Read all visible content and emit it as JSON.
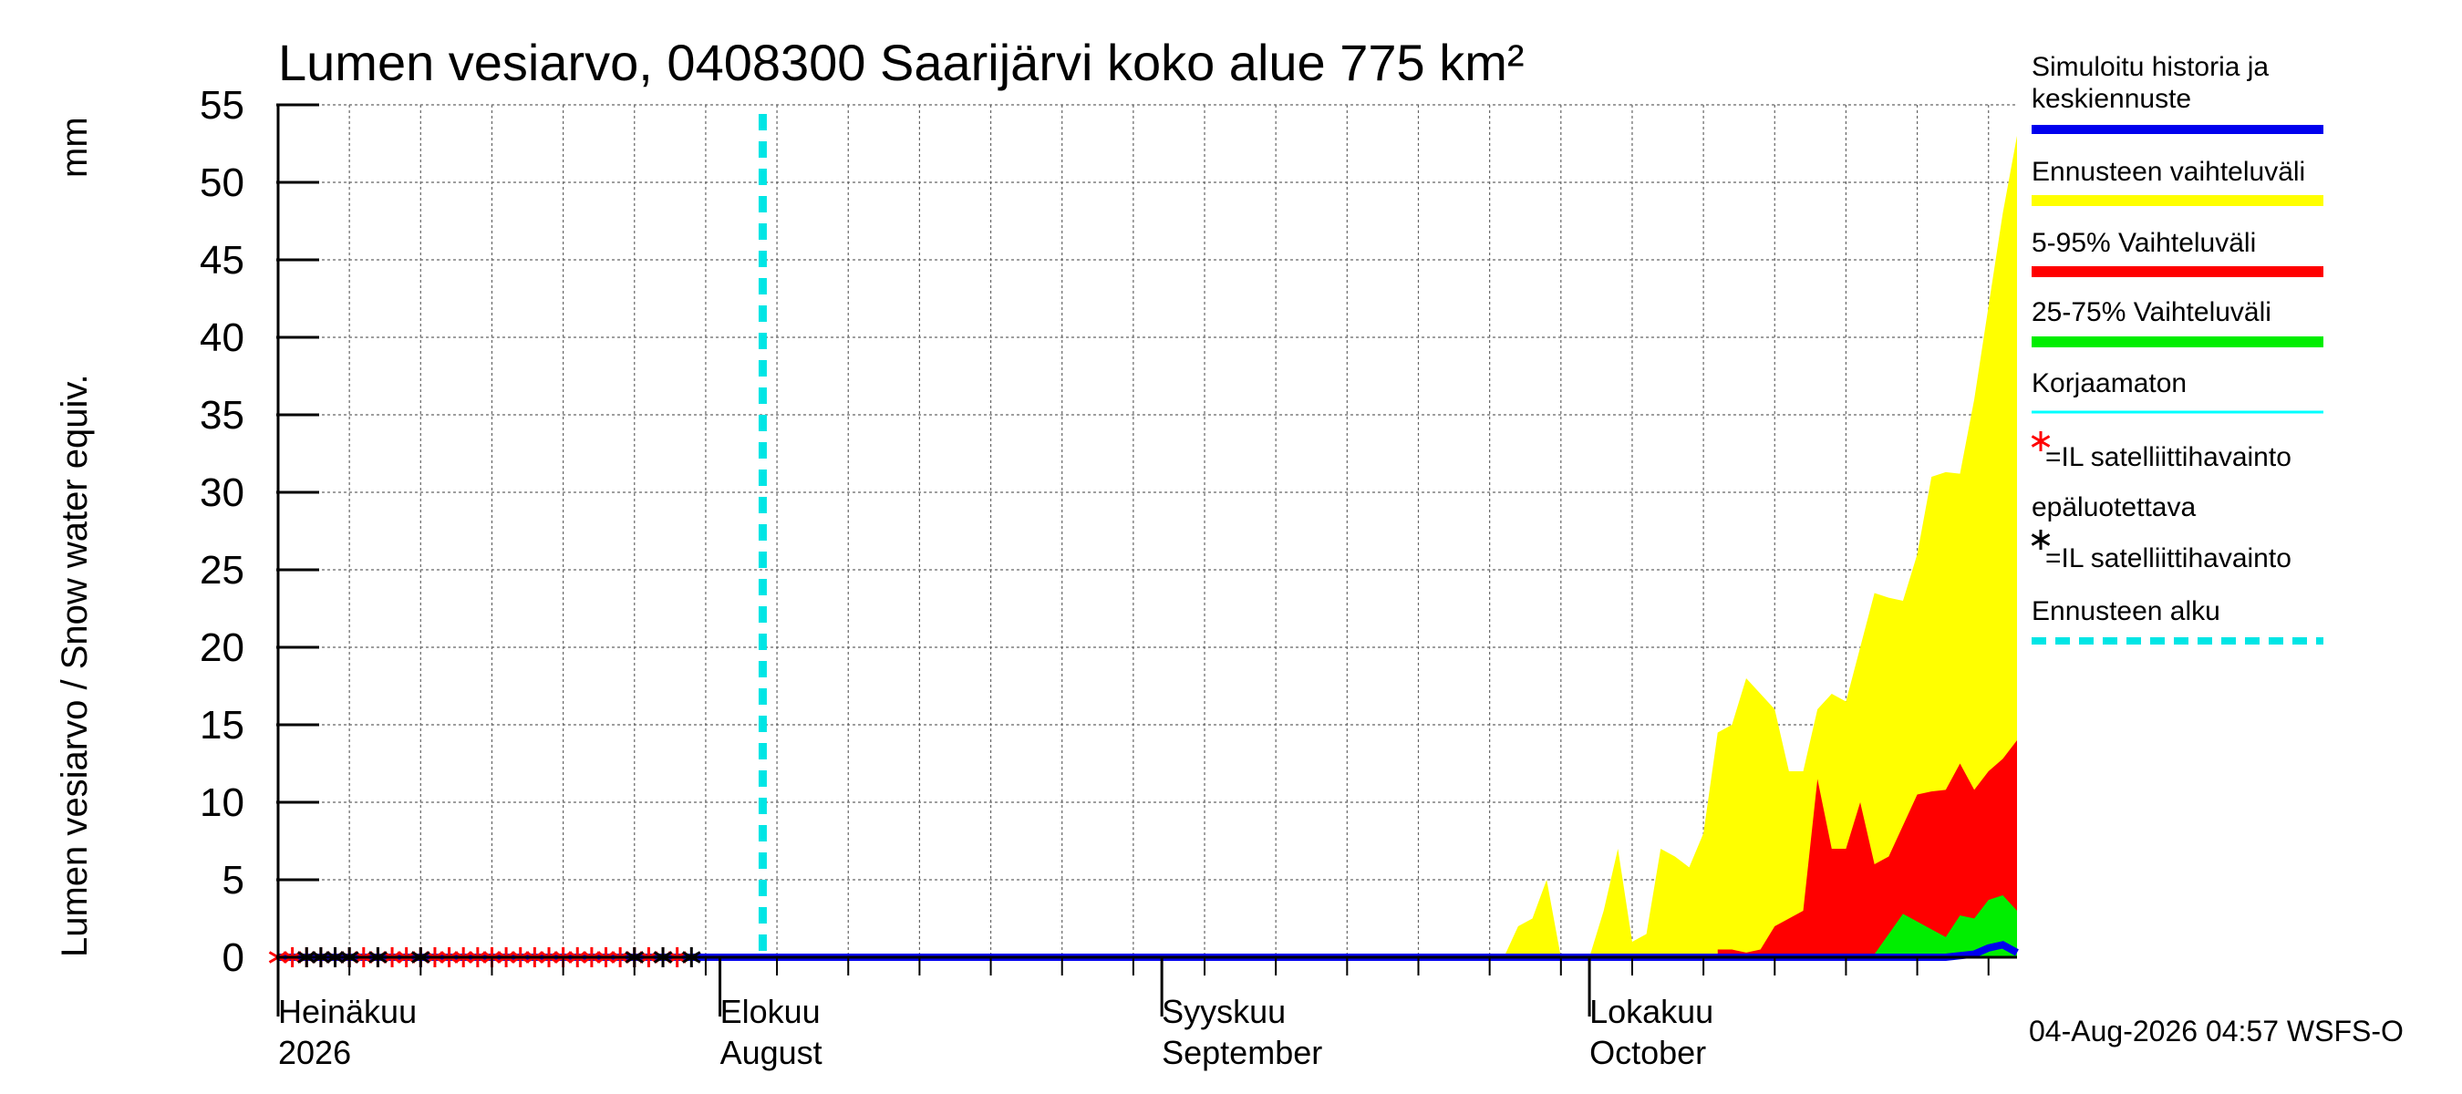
{
  "chart_data": {
    "type": "area",
    "title": "Lumen vesiarvo, 0408300 Saarijärvi koko alue 775 km²",
    "ylabel": "Lumen vesiarvo / Snow water equiv.",
    "yunit": "mm",
    "ylim": [
      0,
      55
    ],
    "yticks": [
      0,
      5,
      10,
      15,
      20,
      25,
      30,
      35,
      40,
      45,
      50,
      55
    ],
    "xlim": [
      "2026-07-01",
      "2026-10-31"
    ],
    "grid": true,
    "month_labels": [
      {
        "date": "2026-07-01",
        "line1": "Heinäkuu",
        "line2": "2026"
      },
      {
        "date": "2026-08-01",
        "line1": "Elokuu",
        "line2": "August"
      },
      {
        "date": "2026-09-01",
        "line1": "Syyskuu",
        "line2": "September"
      },
      {
        "date": "2026-10-01",
        "line1": "Lokakuu",
        "line2": "October"
      }
    ],
    "forecast_start": "2026-08-04",
    "series": [
      {
        "name": "Ennusteen vaihteluväli",
        "color": "#ffff00",
        "kind": "band",
        "x": [
          "2026-09-25",
          "2026-09-26",
          "2026-09-27",
          "2026-09-28",
          "2026-09-29",
          "2026-09-30",
          "2026-10-01",
          "2026-10-02",
          "2026-10-03",
          "2026-10-04",
          "2026-10-05",
          "2026-10-06",
          "2026-10-07",
          "2026-10-08",
          "2026-10-09",
          "2026-10-10",
          "2026-10-11",
          "2026-10-12",
          "2026-10-13",
          "2026-10-14",
          "2026-10-15",
          "2026-10-16",
          "2026-10-17",
          "2026-10-18",
          "2026-10-19",
          "2026-10-20",
          "2026-10-21",
          "2026-10-22",
          "2026-10-23",
          "2026-10-24",
          "2026-10-25",
          "2026-10-26",
          "2026-10-27",
          "2026-10-28",
          "2026-10-29",
          "2026-10-30",
          "2026-10-31"
        ],
        "values": [
          0,
          2,
          2.5,
          5,
          0,
          0,
          0,
          3,
          7,
          1,
          1.5,
          7,
          6.5,
          5.8,
          8,
          14.5,
          15,
          18,
          17,
          16,
          12,
          12,
          16,
          17,
          16.5,
          20,
          23.5,
          23.2,
          23,
          26,
          31,
          31.3,
          31.2,
          36,
          42,
          48,
          53
        ]
      },
      {
        "name": "5-95% Vaihteluväli",
        "color": "#ff0000",
        "kind": "band",
        "x": [
          "2026-10-10",
          "2026-10-11",
          "2026-10-12",
          "2026-10-13",
          "2026-10-14",
          "2026-10-15",
          "2026-10-16",
          "2026-10-17",
          "2026-10-18",
          "2026-10-19",
          "2026-10-20",
          "2026-10-21",
          "2026-10-22",
          "2026-10-23",
          "2026-10-24",
          "2026-10-25",
          "2026-10-26",
          "2026-10-27",
          "2026-10-28",
          "2026-10-29",
          "2026-10-30",
          "2026-10-31"
        ],
        "values": [
          0.5,
          0.5,
          0.3,
          0.5,
          2,
          2.5,
          3,
          11.5,
          7,
          7,
          10,
          6,
          6.5,
          8.5,
          10.5,
          10.7,
          10.8,
          12.5,
          10.8,
          12,
          12.8,
          14
        ]
      },
      {
        "name": "25-75% Vaihteluväli",
        "color": "#00ee00",
        "kind": "band",
        "x": [
          "2026-10-19",
          "2026-10-20",
          "2026-10-21",
          "2026-10-22",
          "2026-10-23",
          "2026-10-24",
          "2026-10-25",
          "2026-10-26",
          "2026-10-27",
          "2026-10-28",
          "2026-10-29",
          "2026-10-30",
          "2026-10-31"
        ],
        "values": [
          0,
          0,
          0.2,
          1.5,
          2.8,
          2.3,
          1.8,
          1.3,
          2.7,
          2.5,
          3.7,
          4,
          3
        ]
      },
      {
        "name": "Simuloitu historia ja keskiennuste",
        "color": "#0000ee",
        "kind": "line",
        "x": [
          "2026-07-01",
          "2026-10-26",
          "2026-10-28",
          "2026-10-29",
          "2026-10-30",
          "2026-10-31"
        ],
        "values": [
          0,
          0,
          0.2,
          0.6,
          0.8,
          0.3
        ]
      },
      {
        "name": "Korjaamaton",
        "color": "#00ffff",
        "kind": "line",
        "x": [
          "2026-07-01",
          "2026-10-31"
        ],
        "values": [
          0,
          0
        ]
      },
      {
        "name": "=IL satelliittihavainto",
        "color": "#ff0000",
        "kind": "marker",
        "x": [
          "2026-07-01",
          "2026-07-02",
          "2026-07-03",
          "2026-07-04",
          "2026-07-05",
          "2026-07-06",
          "2026-07-07",
          "2026-07-08",
          "2026-07-09",
          "2026-07-10",
          "2026-07-11",
          "2026-07-12",
          "2026-07-13",
          "2026-07-14",
          "2026-07-15",
          "2026-07-16",
          "2026-07-17",
          "2026-07-18",
          "2026-07-19",
          "2026-07-20",
          "2026-07-21",
          "2026-07-22",
          "2026-07-23",
          "2026-07-24",
          "2026-07-25",
          "2026-07-26",
          "2026-07-27",
          "2026-07-28",
          "2026-07-29"
        ],
        "values": [
          0,
          0,
          0,
          0,
          0,
          0,
          0,
          0,
          0,
          0,
          0,
          0,
          0,
          0,
          0,
          0,
          0,
          0,
          0,
          0,
          0,
          0,
          0,
          0,
          0,
          0,
          0,
          0,
          0
        ]
      },
      {
        "name": "=IL satelliittihavainto",
        "color": "#000000",
        "kind": "marker",
        "x": [
          "2026-07-03",
          "2026-07-04",
          "2026-07-05",
          "2026-07-06",
          "2026-07-08",
          "2026-07-11",
          "2026-07-26",
          "2026-07-28",
          "2026-07-30"
        ],
        "values": [
          0,
          0,
          0,
          0,
          0,
          0,
          0,
          0,
          0
        ]
      }
    ],
    "legend": {
      "placement": "right",
      "entries": [
        {
          "label": "Simuloitu historia ja keskiennuste",
          "color": "#0000ee",
          "kind": "line"
        },
        {
          "label": "Ennusteen vaihteluväli",
          "color": "#ffff00",
          "kind": "line"
        },
        {
          "label": "5-95% Vaihteluväli",
          "color": "#ff0000",
          "kind": "line"
        },
        {
          "label": "25-75% Vaihteluväli",
          "color": "#00ee00",
          "kind": "line"
        },
        {
          "label": "Korjaamaton",
          "color": "#00ffff",
          "kind": "thin-line"
        },
        {
          "label": "=IL satelliittihavainto",
          "color": "#ff0000",
          "kind": "star"
        },
        {
          "label": "epäluotettava",
          "color": "#000000",
          "kind": "text"
        },
        {
          "label": "=IL satelliittihavainto",
          "color": "#000000",
          "kind": "star"
        },
        {
          "label": "Ennusteen alku",
          "color": "#00e5e5",
          "kind": "dashed"
        }
      ]
    },
    "footer": "04-Aug-2026 04:57 WSFS-O"
  }
}
